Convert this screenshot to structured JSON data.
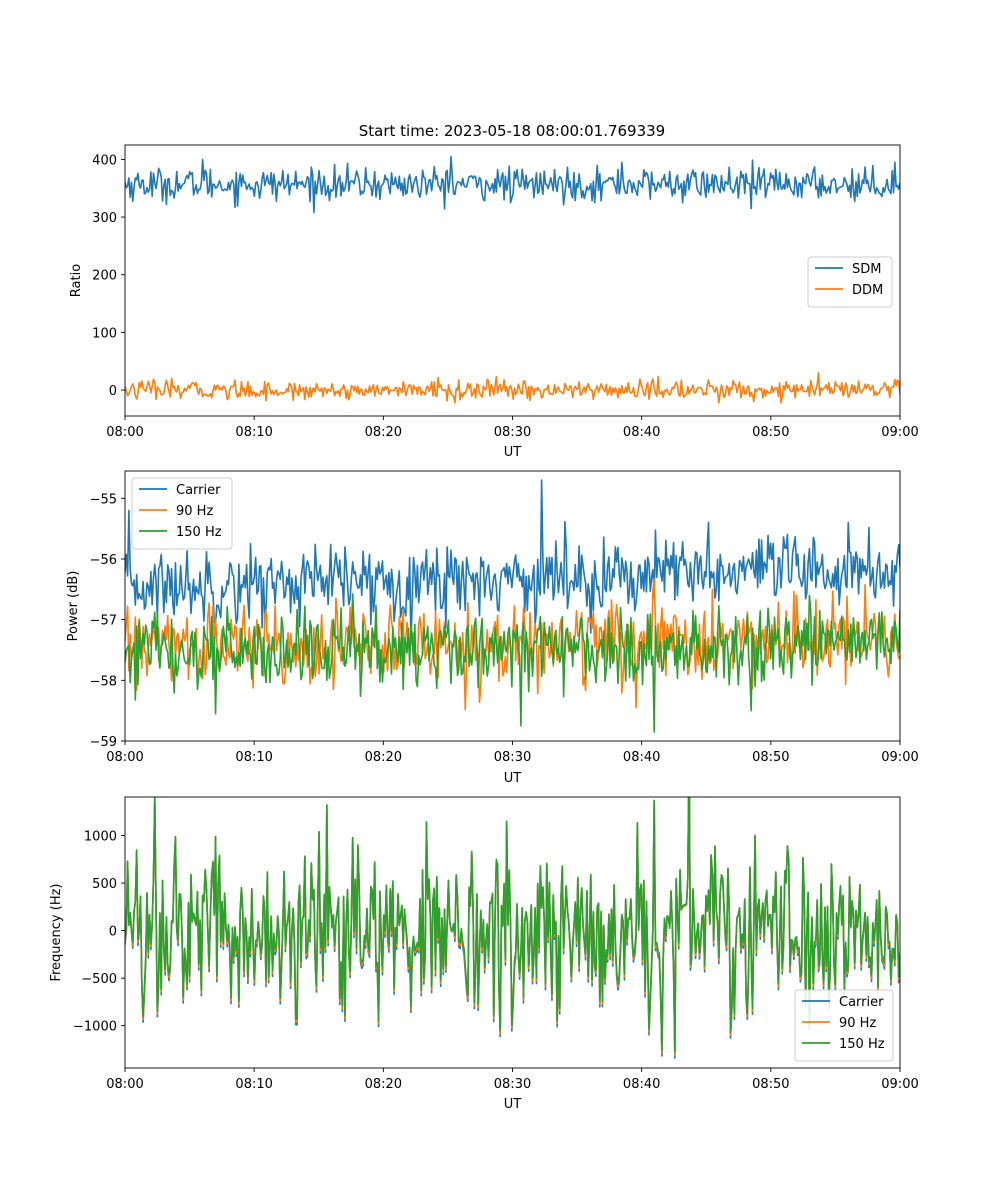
{
  "figure": {
    "title": "Start time: 2023-05-18 08:00:01.769339"
  },
  "chart_data": [
    {
      "type": "line",
      "xlabel": "UT",
      "ylabel": "Ratio",
      "xlim": [
        "08:00",
        "09:00"
      ],
      "ylim": [
        -45,
        425
      ],
      "xticks": [
        "08:00",
        "08:10",
        "08:20",
        "08:30",
        "08:40",
        "08:50",
        "09:00"
      ],
      "yticks": [
        0,
        100,
        200,
        300,
        400
      ],
      "grid": false,
      "legend_position": "center-right",
      "series": [
        {
          "name": "SDM",
          "color": "#1f77b4",
          "mean": 357,
          "spread": 14,
          "peaks": [
            [
              6.0,
              400
            ],
            [
              25.2,
              405
            ],
            [
              29.8,
              325
            ],
            [
              38.5,
              395
            ],
            [
              48.5,
              315
            ],
            [
              59.6,
              395
            ]
          ]
        },
        {
          "name": "DDM",
          "color": "#ff7f0e",
          "mean": 0,
          "spread": 8,
          "peaks": [
            [
              13.0,
              -18
            ],
            [
              25.5,
              -22
            ],
            [
              46.0,
              -22
            ],
            [
              53.7,
              30
            ],
            [
              59.9,
              15
            ]
          ]
        }
      ]
    },
    {
      "type": "line",
      "xlabel": "UT",
      "ylabel": "Power (dB)",
      "xlim": [
        "08:00",
        "09:00"
      ],
      "ylim": [
        -59.0,
        -54.55
      ],
      "xticks": [
        "08:00",
        "08:10",
        "08:20",
        "08:30",
        "08:40",
        "08:50",
        "09:00"
      ],
      "yticks": [
        -59,
        -58,
        -57,
        -56,
        -55
      ],
      "grid": false,
      "legend_position": "upper-left",
      "series": [
        {
          "name": "Carrier",
          "color": "#1f77b4",
          "mean": -56.45,
          "trend": 0.0045,
          "spread": 0.3,
          "peaks": [
            [
              0.3,
              -55.2
            ],
            [
              32.3,
              -54.7
            ],
            [
              45.2,
              -55.4
            ],
            [
              56.0,
              -55.4
            ]
          ]
        },
        {
          "name": "90 Hz",
          "color": "#ff7f0e",
          "mean": -57.45,
          "trend": 0.002,
          "spread": 0.32,
          "peaks": [
            [
              39.6,
              -58.45
            ],
            [
              45.5,
              -56.5
            ],
            [
              52.0,
              -56.6
            ]
          ]
        },
        {
          "name": "150 Hz",
          "color": "#2ca02c",
          "mean": -57.55,
          "trend": 0.003,
          "spread": 0.32,
          "peaks": [
            [
              7.0,
              -58.55
            ],
            [
              30.7,
              -58.75
            ],
            [
              41.0,
              -58.85
            ],
            [
              48.5,
              -58.5
            ],
            [
              53.0,
              -56.6
            ]
          ]
        }
      ]
    },
    {
      "type": "line",
      "xlabel": "UT",
      "ylabel": "Frequency (Hz)",
      "xlim": [
        "08:00",
        "09:00"
      ],
      "ylim": [
        -1445,
        1405
      ],
      "xticks": [
        "08:00",
        "08:10",
        "08:20",
        "08:30",
        "08:40",
        "08:50",
        "09:00"
      ],
      "yticks": [
        -1000,
        -500,
        0,
        500,
        1000
      ],
      "grid": false,
      "legend_position": "lower-right",
      "series": [
        {
          "name": "Carrier",
          "color": "#1f77b4",
          "offset": -60
        },
        {
          "name": "90 Hz",
          "color": "#ff7f0e",
          "offset": -30
        },
        {
          "name": "150 Hz",
          "color": "#2ca02c",
          "offset": 0
        }
      ],
      "common": {
        "mean": 0,
        "spread": 380,
        "peaks": [
          [
            7.0,
            990
          ],
          [
            15.0,
            1040
          ],
          [
            29.5,
            1150
          ],
          [
            41.0,
            1370
          ],
          [
            42.6,
            -1280
          ],
          [
            13.2,
            -930
          ],
          [
            33.5,
            -950
          ]
        ]
      }
    }
  ]
}
